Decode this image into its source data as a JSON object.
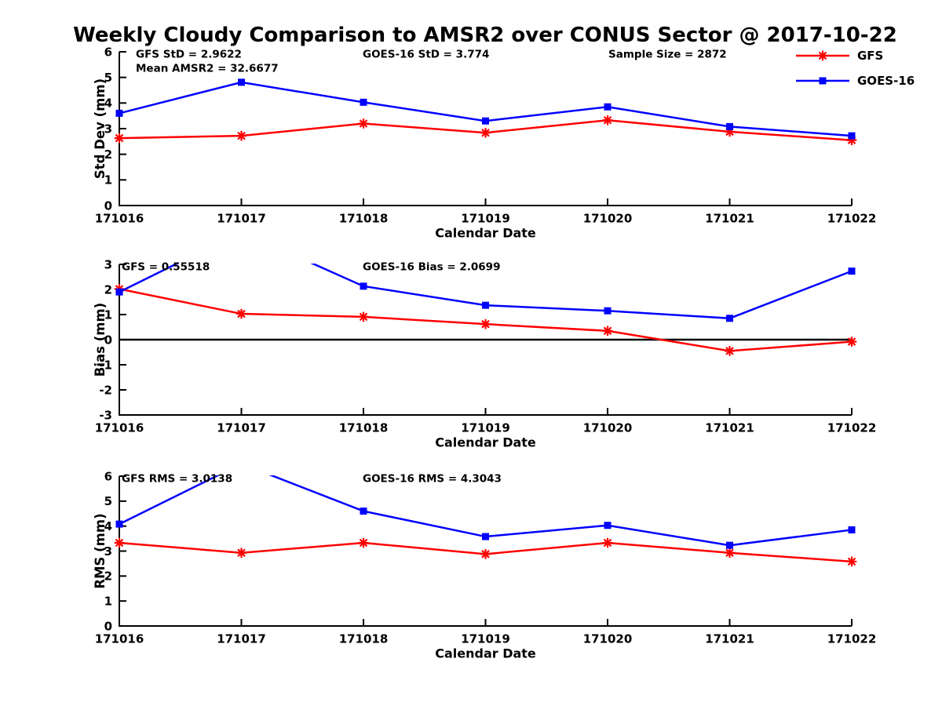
{
  "title": "Weekly Cloudy Comparison to AMSR2 over CONUS Sector @ 2017-10-22",
  "legend": {
    "position": "top-right",
    "items": [
      {
        "label": "GFS",
        "color": "#ff0000",
        "marker": "asterisk"
      },
      {
        "label": "GOES-16",
        "color": "#0000ff",
        "marker": "square"
      }
    ]
  },
  "colors": {
    "gfs": "#ff0000",
    "goes16": "#0000ff",
    "axis": "#000000",
    "background": "#ffffff"
  },
  "chart_data": [
    {
      "type": "line",
      "title": "",
      "xlabel": "Calendar Date",
      "ylabel": "Std Dev (mm)",
      "ylim": [
        0,
        6
      ],
      "yticks": [
        0,
        1,
        2,
        3,
        4,
        5,
        6
      ],
      "grid": false,
      "zero_line": false,
      "categories": [
        "171016",
        "171017",
        "171018",
        "171019",
        "171020",
        "171021",
        "171022"
      ],
      "series": [
        {
          "name": "GFS",
          "color": "#ff0000",
          "marker": "asterisk",
          "values": [
            2.63,
            2.72,
            3.2,
            2.84,
            3.33,
            2.88,
            2.55
          ]
        },
        {
          "name": "GOES-16",
          "color": "#0000ff",
          "marker": "square",
          "values": [
            3.6,
            4.81,
            4.03,
            3.3,
            3.85,
            3.08,
            2.72
          ]
        }
      ],
      "annotations": [
        {
          "slot": 0,
          "row": 1,
          "text": "GFS StD = 2.9622"
        },
        {
          "slot": 0,
          "row": 2,
          "text": "Mean AMSR2 = 32.6677"
        },
        {
          "slot": 1,
          "row": 1,
          "text": "GOES-16 StD = 3.774"
        },
        {
          "slot": 2,
          "row": 1,
          "text": "Sample Size = 2872"
        }
      ]
    },
    {
      "type": "line",
      "title": "",
      "xlabel": "Calendar Date",
      "ylabel": "Bias (mm)",
      "ylim": [
        -3,
        3
      ],
      "yticks": [
        -3,
        -2,
        -1,
        0,
        1,
        2,
        3
      ],
      "grid": false,
      "zero_line": true,
      "categories": [
        "171016",
        "171017",
        "171018",
        "171019",
        "171020",
        "171021",
        "171022"
      ],
      "series": [
        {
          "name": "GFS",
          "color": "#ff0000",
          "marker": "asterisk",
          "values": [
            2.02,
            1.03,
            0.91,
            0.62,
            0.35,
            -0.45,
            -0.08
          ]
        },
        {
          "name": "GOES-16",
          "color": "#0000ff",
          "marker": "square",
          "values": [
            1.9,
            4.3,
            2.13,
            1.37,
            1.15,
            0.85,
            2.73
          ]
        }
      ],
      "annotations": [
        {
          "slot": 0,
          "row": 1,
          "text": "GFS = 0.55518"
        },
        {
          "slot": 1,
          "row": 1,
          "text": "GOES-16 Bias  = 2.0699"
        }
      ]
    },
    {
      "type": "line",
      "title": "",
      "xlabel": "Calendar Date",
      "ylabel": "RMS (mm)",
      "ylim": [
        0,
        6
      ],
      "yticks": [
        0,
        1,
        2,
        3,
        4,
        5,
        6
      ],
      "grid": false,
      "zero_line": false,
      "categories": [
        "171016",
        "171017",
        "171018",
        "171019",
        "171020",
        "171021",
        "171022"
      ],
      "series": [
        {
          "name": "GFS",
          "color": "#ff0000",
          "marker": "asterisk",
          "values": [
            3.33,
            2.93,
            3.33,
            2.88,
            3.33,
            2.93,
            2.58
          ]
        },
        {
          "name": "GOES-16",
          "color": "#0000ff",
          "marker": "square",
          "values": [
            4.08,
            6.5,
            4.6,
            3.58,
            4.03,
            3.23,
            3.85
          ]
        }
      ],
      "annotations": [
        {
          "slot": 0,
          "row": 1,
          "text": "GFS RMS = 3.0138"
        },
        {
          "slot": 1,
          "row": 1,
          "text": "GOES-16 RMS = 4.3043"
        }
      ]
    }
  ]
}
